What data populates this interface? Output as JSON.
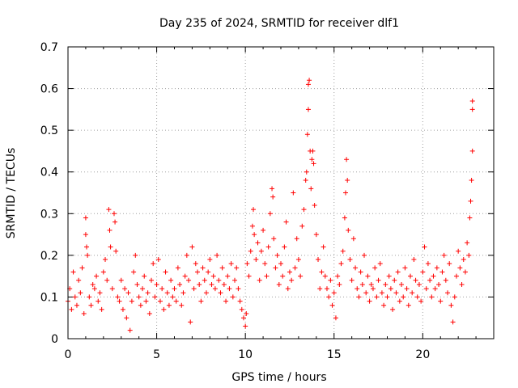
{
  "chart_data": {
    "type": "scatter",
    "title": "Day 235 of 2024, SRMTID for receiver dlf1",
    "xlabel": "GPS time / hours",
    "ylabel": "SRMTID / TECUs",
    "xlim": [
      0,
      24
    ],
    "ylim": [
      0,
      0.7
    ],
    "x_ticks": [
      0,
      5,
      10,
      15,
      20
    ],
    "x_tick_labels": [
      "0",
      "5",
      "10",
      "15",
      "20"
    ],
    "y_ticks": [
      0,
      0.1,
      0.2,
      0.3,
      0.4,
      0.5,
      0.6,
      0.7
    ],
    "y_tick_labels": [
      "0",
      "0.1",
      "0.2",
      "0.3",
      "0.4",
      "0.5",
      "0.6",
      "0.7"
    ],
    "grid": true,
    "marker": "+",
    "marker_color": "#ff0000",
    "series": [
      {
        "name": "dlf1",
        "points": [
          [
            0.0,
            0.09
          ],
          [
            0.1,
            0.12
          ],
          [
            0.2,
            0.07
          ],
          [
            0.3,
            0.16
          ],
          [
            0.4,
            0.1
          ],
          [
            0.5,
            0.08
          ],
          [
            0.6,
            0.14
          ],
          [
            0.7,
            0.11
          ],
          [
            0.8,
            0.17
          ],
          [
            0.9,
            0.06
          ],
          [
            1.0,
            0.25
          ],
          [
            1.0,
            0.29
          ],
          [
            1.05,
            0.22
          ],
          [
            1.1,
            0.2
          ],
          [
            1.2,
            0.1
          ],
          [
            1.3,
            0.08
          ],
          [
            1.4,
            0.13
          ],
          [
            1.5,
            0.12
          ],
          [
            1.6,
            0.15
          ],
          [
            1.7,
            0.09
          ],
          [
            1.8,
            0.11
          ],
          [
            1.9,
            0.07
          ],
          [
            2.0,
            0.16
          ],
          [
            2.1,
            0.19
          ],
          [
            2.2,
            0.14
          ],
          [
            2.3,
            0.31
          ],
          [
            2.35,
            0.26
          ],
          [
            2.4,
            0.22
          ],
          [
            2.5,
            0.12
          ],
          [
            2.6,
            0.3
          ],
          [
            2.65,
            0.28
          ],
          [
            2.7,
            0.21
          ],
          [
            2.8,
            0.1
          ],
          [
            2.9,
            0.09
          ],
          [
            3.0,
            0.14
          ],
          [
            3.1,
            0.07
          ],
          [
            3.2,
            0.12
          ],
          [
            3.3,
            0.05
          ],
          [
            3.4,
            0.11
          ],
          [
            3.5,
            0.02
          ],
          [
            3.6,
            0.09
          ],
          [
            3.7,
            0.16
          ],
          [
            3.8,
            0.2
          ],
          [
            3.9,
            0.13
          ],
          [
            4.0,
            0.1
          ],
          [
            4.1,
            0.08
          ],
          [
            4.2,
            0.12
          ],
          [
            4.3,
            0.15
          ],
          [
            4.4,
            0.09
          ],
          [
            4.5,
            0.11
          ],
          [
            4.6,
            0.06
          ],
          [
            4.7,
            0.14
          ],
          [
            4.8,
            0.18
          ],
          [
            4.9,
            0.1
          ],
          [
            5.0,
            0.13
          ],
          [
            5.1,
            0.19
          ],
          [
            5.2,
            0.09
          ],
          [
            5.3,
            0.12
          ],
          [
            5.4,
            0.07
          ],
          [
            5.5,
            0.16
          ],
          [
            5.6,
            0.11
          ],
          [
            5.7,
            0.08
          ],
          [
            5.8,
            0.14
          ],
          [
            5.9,
            0.1
          ],
          [
            6.0,
            0.12
          ],
          [
            6.1,
            0.09
          ],
          [
            6.2,
            0.17
          ],
          [
            6.3,
            0.13
          ],
          [
            6.4,
            0.08
          ],
          [
            6.5,
            0.11
          ],
          [
            6.6,
            0.15
          ],
          [
            6.7,
            0.2
          ],
          [
            6.8,
            0.14
          ],
          [
            6.9,
            0.04
          ],
          [
            7.0,
            0.22
          ],
          [
            7.1,
            0.12
          ],
          [
            7.2,
            0.18
          ],
          [
            7.3,
            0.16
          ],
          [
            7.4,
            0.13
          ],
          [
            7.5,
            0.09
          ],
          [
            7.6,
            0.17
          ],
          [
            7.7,
            0.14
          ],
          [
            7.8,
            0.11
          ],
          [
            7.9,
            0.16
          ],
          [
            8.0,
            0.19
          ],
          [
            8.1,
            0.13
          ],
          [
            8.2,
            0.15
          ],
          [
            8.3,
            0.12
          ],
          [
            8.4,
            0.2
          ],
          [
            8.5,
            0.14
          ],
          [
            8.6,
            0.11
          ],
          [
            8.7,
            0.17
          ],
          [
            8.8,
            0.13
          ],
          [
            8.9,
            0.09
          ],
          [
            9.0,
            0.15
          ],
          [
            9.1,
            0.12
          ],
          [
            9.2,
            0.18
          ],
          [
            9.3,
            0.1
          ],
          [
            9.4,
            0.14
          ],
          [
            9.5,
            0.17
          ],
          [
            9.6,
            0.12
          ],
          [
            9.7,
            0.09
          ],
          [
            9.8,
            0.07
          ],
          [
            9.9,
            0.05
          ],
          [
            10.0,
            0.03
          ],
          [
            10.05,
            0.06
          ],
          [
            10.1,
            0.18
          ],
          [
            10.2,
            0.15
          ],
          [
            10.3,
            0.21
          ],
          [
            10.4,
            0.27
          ],
          [
            10.45,
            0.31
          ],
          [
            10.5,
            0.25
          ],
          [
            10.6,
            0.19
          ],
          [
            10.7,
            0.23
          ],
          [
            10.8,
            0.14
          ],
          [
            10.9,
            0.21
          ],
          [
            11.0,
            0.26
          ],
          [
            11.1,
            0.18
          ],
          [
            11.2,
            0.15
          ],
          [
            11.3,
            0.22
          ],
          [
            11.4,
            0.3
          ],
          [
            11.5,
            0.36
          ],
          [
            11.55,
            0.34
          ],
          [
            11.6,
            0.24
          ],
          [
            11.7,
            0.17
          ],
          [
            11.8,
            0.2
          ],
          [
            11.9,
            0.13
          ],
          [
            12.0,
            0.18
          ],
          [
            12.1,
            0.15
          ],
          [
            12.2,
            0.22
          ],
          [
            12.3,
            0.28
          ],
          [
            12.4,
            0.12
          ],
          [
            12.5,
            0.16
          ],
          [
            12.6,
            0.14
          ],
          [
            12.7,
            0.35
          ],
          [
            12.8,
            0.17
          ],
          [
            12.9,
            0.24
          ],
          [
            13.0,
            0.19
          ],
          [
            13.1,
            0.15
          ],
          [
            13.2,
            0.27
          ],
          [
            13.3,
            0.31
          ],
          [
            13.4,
            0.38
          ],
          [
            13.45,
            0.4
          ],
          [
            13.5,
            0.49
          ],
          [
            13.55,
            0.55
          ],
          [
            13.55,
            0.61
          ],
          [
            13.6,
            0.62
          ],
          [
            13.65,
            0.45
          ],
          [
            13.7,
            0.36
          ],
          [
            13.75,
            0.43
          ],
          [
            13.8,
            0.45
          ],
          [
            13.85,
            0.42
          ],
          [
            13.9,
            0.32
          ],
          [
            14.0,
            0.25
          ],
          [
            14.1,
            0.19
          ],
          [
            14.2,
            0.12
          ],
          [
            14.3,
            0.16
          ],
          [
            14.4,
            0.22
          ],
          [
            14.5,
            0.15
          ],
          [
            14.6,
            0.12
          ],
          [
            14.7,
            0.1
          ],
          [
            14.8,
            0.14
          ],
          [
            14.9,
            0.08
          ],
          [
            15.0,
            0.11
          ],
          [
            15.1,
            0.05
          ],
          [
            15.2,
            0.15
          ],
          [
            15.3,
            0.13
          ],
          [
            15.4,
            0.18
          ],
          [
            15.5,
            0.21
          ],
          [
            15.6,
            0.29
          ],
          [
            15.65,
            0.35
          ],
          [
            15.7,
            0.43
          ],
          [
            15.75,
            0.38
          ],
          [
            15.8,
            0.26
          ],
          [
            15.9,
            0.19
          ],
          [
            16.0,
            0.14
          ],
          [
            16.1,
            0.24
          ],
          [
            16.2,
            0.17
          ],
          [
            16.3,
            0.12
          ],
          [
            16.4,
            0.1
          ],
          [
            16.5,
            0.16
          ],
          [
            16.6,
            0.13
          ],
          [
            16.7,
            0.2
          ],
          [
            16.8,
            0.11
          ],
          [
            16.9,
            0.15
          ],
          [
            17.0,
            0.09
          ],
          [
            17.1,
            0.13
          ],
          [
            17.2,
            0.12
          ],
          [
            17.3,
            0.17
          ],
          [
            17.4,
            0.1
          ],
          [
            17.5,
            0.14
          ],
          [
            17.6,
            0.18
          ],
          [
            17.7,
            0.11
          ],
          [
            17.8,
            0.08
          ],
          [
            17.9,
            0.13
          ],
          [
            18.0,
            0.1
          ],
          [
            18.1,
            0.15
          ],
          [
            18.2,
            0.12
          ],
          [
            18.3,
            0.07
          ],
          [
            18.4,
            0.14
          ],
          [
            18.5,
            0.11
          ],
          [
            18.6,
            0.16
          ],
          [
            18.7,
            0.09
          ],
          [
            18.8,
            0.13
          ],
          [
            18.9,
            0.1
          ],
          [
            19.0,
            0.17
          ],
          [
            19.1,
            0.12
          ],
          [
            19.2,
            0.08
          ],
          [
            19.3,
            0.15
          ],
          [
            19.4,
            0.11
          ],
          [
            19.5,
            0.19
          ],
          [
            19.6,
            0.14
          ],
          [
            19.7,
            0.1
          ],
          [
            19.8,
            0.13
          ],
          [
            19.9,
            0.09
          ],
          [
            20.0,
            0.16
          ],
          [
            20.1,
            0.22
          ],
          [
            20.2,
            0.12
          ],
          [
            20.3,
            0.18
          ],
          [
            20.4,
            0.14
          ],
          [
            20.5,
            0.1
          ],
          [
            20.6,
            0.15
          ],
          [
            20.7,
            0.12
          ],
          [
            20.8,
            0.17
          ],
          [
            20.9,
            0.13
          ],
          [
            21.0,
            0.09
          ],
          [
            21.1,
            0.16
          ],
          [
            21.2,
            0.2
          ],
          [
            21.3,
            0.14
          ],
          [
            21.4,
            0.11
          ],
          [
            21.5,
            0.18
          ],
          [
            21.6,
            0.08
          ],
          [
            21.7,
            0.04
          ],
          [
            21.8,
            0.1
          ],
          [
            21.9,
            0.15
          ],
          [
            22.0,
            0.21
          ],
          [
            22.1,
            0.17
          ],
          [
            22.2,
            0.13
          ],
          [
            22.3,
            0.19
          ],
          [
            22.4,
            0.16
          ],
          [
            22.5,
            0.23
          ],
          [
            22.6,
            0.2
          ],
          [
            22.65,
            0.29
          ],
          [
            22.7,
            0.33
          ],
          [
            22.75,
            0.38
          ],
          [
            22.8,
            0.45
          ],
          [
            22.8,
            0.55
          ],
          [
            22.8,
            0.57
          ]
        ]
      }
    ]
  }
}
